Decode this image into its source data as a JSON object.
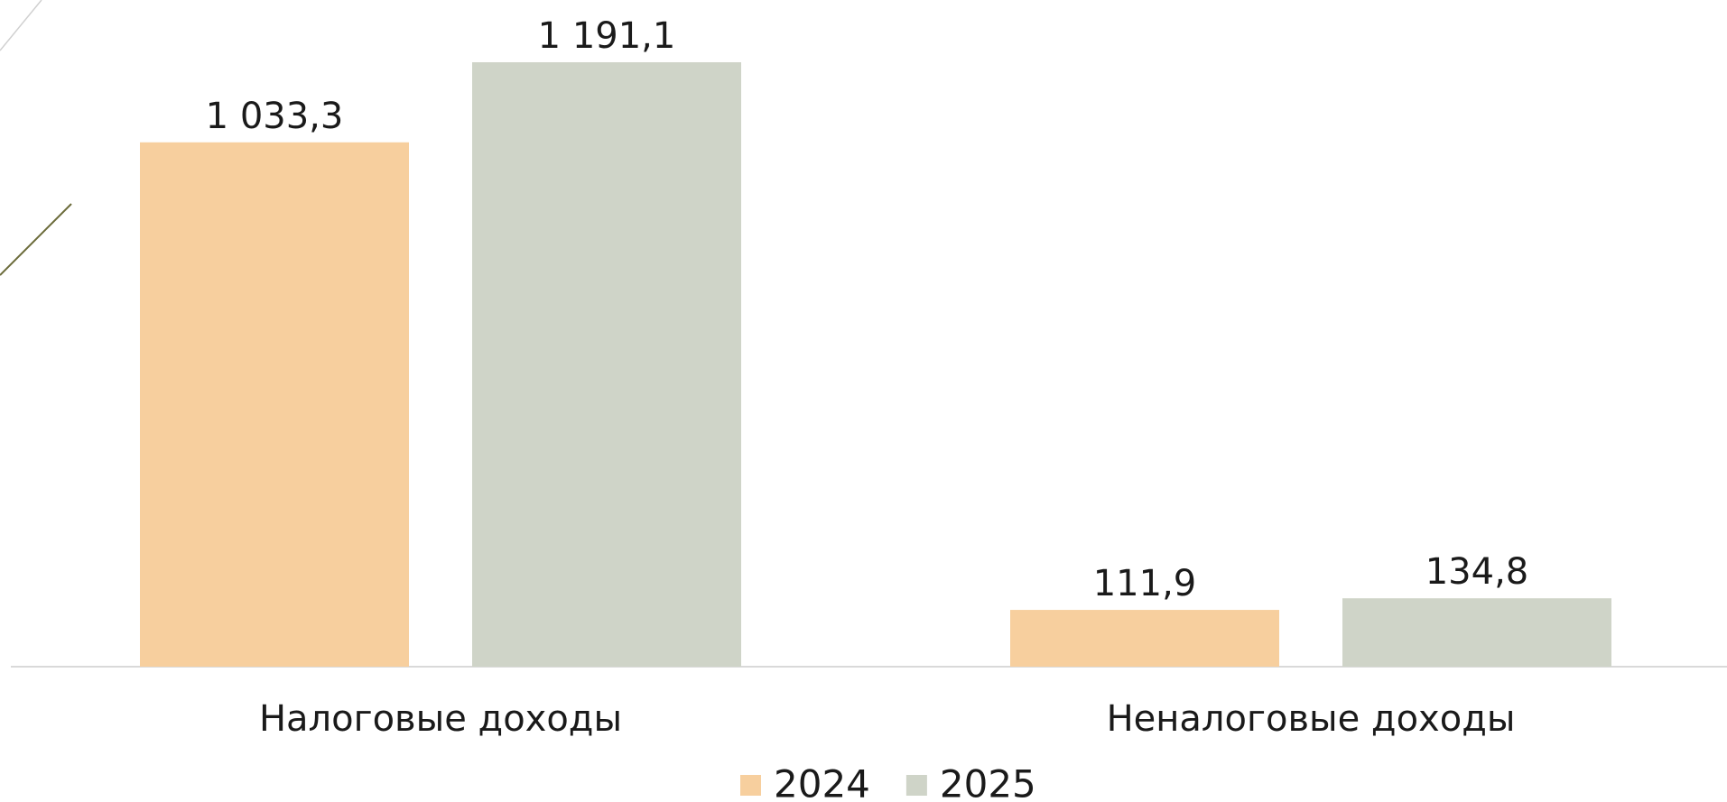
{
  "chart_data": {
    "type": "bar",
    "categories": [
      "Налоговые доходы",
      "Неналоговые доходы"
    ],
    "series": [
      {
        "name": "2024",
        "color": "#f7cf9e",
        "values": [
          1033.3,
          111.9
        ],
        "value_labels": [
          "1 033,3",
          "111,9"
        ]
      },
      {
        "name": "2025",
        "color": "#cfd4c8",
        "values": [
          1191.1,
          134.8
        ],
        "value_labels": [
          "1 191,1",
          "134,8"
        ]
      }
    ],
    "legend": "bottom"
  }
}
